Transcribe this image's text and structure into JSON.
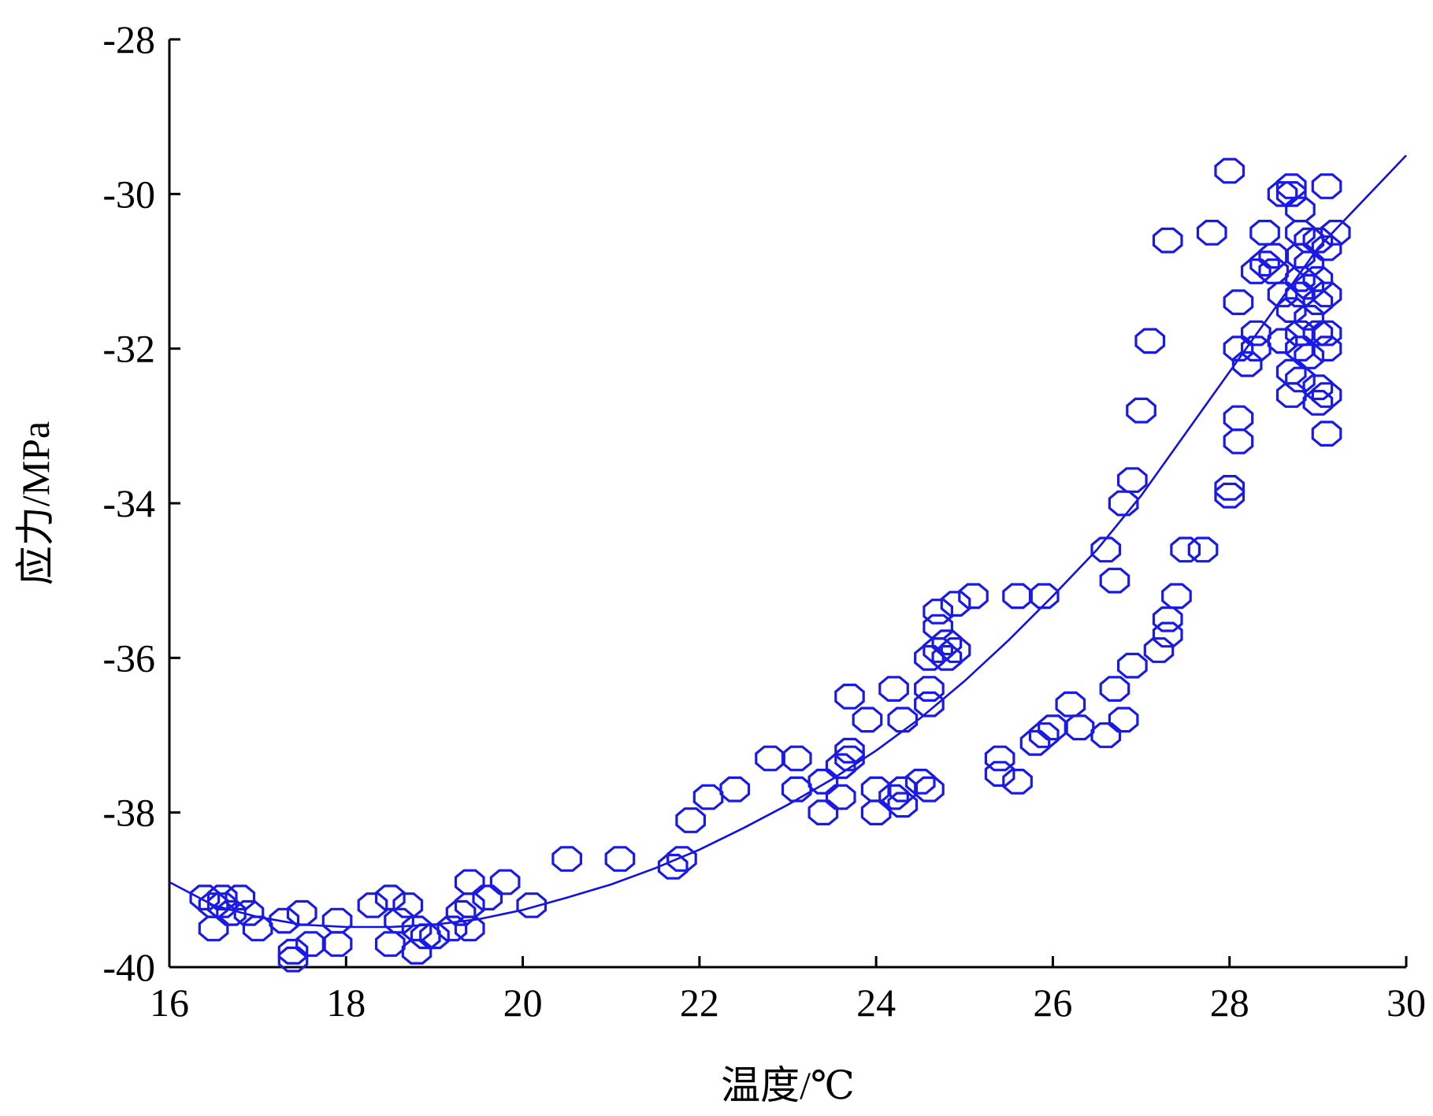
{
  "chart_data": {
    "type": "scatter",
    "title": "",
    "xlabel": "温度/℃",
    "ylabel": "应力/MPa",
    "xlim": [
      16,
      30
    ],
    "ylim": [
      -40,
      -28
    ],
    "xticks": [
      "16",
      "18",
      "20",
      "22",
      "24",
      "26",
      "28",
      "30"
    ],
    "yticks": [
      "-28",
      "-30",
      "-32",
      "-34",
      "-36",
      "-38",
      "-40"
    ],
    "grid": false,
    "marker": "hollow-octagon",
    "color": "#1a1ae6",
    "series": [
      {
        "kind": "points",
        "points": [
          [
            16.4,
            -39.1
          ],
          [
            16.5,
            -39.2
          ],
          [
            16.6,
            -39.1
          ],
          [
            16.7,
            -39.3
          ],
          [
            16.8,
            -39.1
          ],
          [
            16.9,
            -39.3
          ],
          [
            17.0,
            -39.5
          ],
          [
            16.5,
            -39.5
          ],
          [
            16.6,
            -39.2
          ],
          [
            17.3,
            -39.4
          ],
          [
            17.4,
            -39.8
          ],
          [
            17.5,
            -39.3
          ],
          [
            17.6,
            -39.7
          ],
          [
            17.4,
            -39.9
          ],
          [
            17.9,
            -39.4
          ],
          [
            17.9,
            -39.7
          ],
          [
            18.3,
            -39.2
          ],
          [
            18.5,
            -39.1
          ],
          [
            18.7,
            -39.2
          ],
          [
            18.6,
            -39.4
          ],
          [
            18.5,
            -39.7
          ],
          [
            18.8,
            -39.5
          ],
          [
            18.9,
            -39.6
          ],
          [
            18.8,
            -39.8
          ],
          [
            19.0,
            -39.6
          ],
          [
            19.2,
            -39.5
          ],
          [
            19.3,
            -39.3
          ],
          [
            19.4,
            -39.2
          ],
          [
            19.4,
            -39.5
          ],
          [
            19.4,
            -38.9
          ],
          [
            19.6,
            -39.1
          ],
          [
            19.8,
            -38.9
          ],
          [
            20.1,
            -39.2
          ],
          [
            20.5,
            -38.6
          ],
          [
            21.1,
            -38.6
          ],
          [
            21.7,
            -38.7
          ],
          [
            21.8,
            -38.6
          ],
          [
            21.9,
            -38.1
          ],
          [
            22.1,
            -37.8
          ],
          [
            22.4,
            -37.7
          ],
          [
            22.8,
            -37.3
          ],
          [
            23.1,
            -37.3
          ],
          [
            23.1,
            -37.7
          ],
          [
            23.4,
            -38.0
          ],
          [
            23.4,
            -37.6
          ],
          [
            23.6,
            -37.4
          ],
          [
            23.7,
            -37.2
          ],
          [
            23.7,
            -37.3
          ],
          [
            23.6,
            -37.8
          ],
          [
            23.7,
            -36.5
          ],
          [
            23.9,
            -36.8
          ],
          [
            24.0,
            -37.7
          ],
          [
            24.0,
            -38.0
          ],
          [
            24.2,
            -36.4
          ],
          [
            24.2,
            -37.8
          ],
          [
            24.3,
            -37.9
          ],
          [
            24.3,
            -37.7
          ],
          [
            24.3,
            -36.8
          ],
          [
            24.5,
            -37.6
          ],
          [
            24.6,
            -37.7
          ],
          [
            24.6,
            -36.6
          ],
          [
            24.6,
            -36.4
          ],
          [
            24.6,
            -36.0
          ],
          [
            24.7,
            -35.9
          ],
          [
            24.7,
            -35.6
          ],
          [
            24.7,
            -35.4
          ],
          [
            24.8,
            -35.8
          ],
          [
            24.8,
            -36.0
          ],
          [
            24.9,
            -35.9
          ],
          [
            24.9,
            -35.3
          ],
          [
            25.1,
            -35.2
          ],
          [
            25.4,
            -37.3
          ],
          [
            25.4,
            -37.5
          ],
          [
            25.6,
            -37.6
          ],
          [
            25.6,
            -35.2
          ],
          [
            25.8,
            -37.1
          ],
          [
            25.9,
            -37.0
          ],
          [
            25.9,
            -35.2
          ],
          [
            26.0,
            -36.9
          ],
          [
            26.2,
            -36.6
          ],
          [
            26.3,
            -36.9
          ],
          [
            26.6,
            -34.6
          ],
          [
            26.6,
            -37.0
          ],
          [
            26.7,
            -35.0
          ],
          [
            26.7,
            -36.4
          ],
          [
            26.8,
            -36.8
          ],
          [
            26.8,
            -34.0
          ],
          [
            26.9,
            -33.7
          ],
          [
            26.9,
            -36.1
          ],
          [
            27.0,
            -32.8
          ],
          [
            27.1,
            -31.9
          ],
          [
            27.2,
            -35.9
          ],
          [
            27.3,
            -35.5
          ],
          [
            27.3,
            -35.7
          ],
          [
            27.3,
            -30.6
          ],
          [
            27.4,
            -35.2
          ],
          [
            27.5,
            -34.6
          ],
          [
            27.7,
            -34.6
          ],
          [
            27.8,
            -30.5
          ],
          [
            28.0,
            -33.8
          ],
          [
            28.0,
            -29.7
          ],
          [
            28.0,
            -33.9
          ],
          [
            28.1,
            -31.4
          ],
          [
            28.1,
            -32.0
          ],
          [
            28.1,
            -32.9
          ],
          [
            28.1,
            -33.2
          ],
          [
            28.2,
            -32.2
          ],
          [
            28.3,
            -31.8
          ],
          [
            28.3,
            -32.0
          ],
          [
            28.3,
            -31.0
          ],
          [
            28.4,
            -30.5
          ],
          [
            28.4,
            -30.9
          ],
          [
            28.5,
            -31.0
          ],
          [
            28.5,
            -30.8
          ],
          [
            28.6,
            -30.0
          ],
          [
            28.6,
            -31.3
          ],
          [
            28.6,
            -31.9
          ],
          [
            28.7,
            -30.0
          ],
          [
            28.7,
            -29.9
          ],
          [
            28.7,
            -31.5
          ],
          [
            28.7,
            -32.3
          ],
          [
            28.7,
            -32.6
          ],
          [
            28.8,
            -30.2
          ],
          [
            28.8,
            -30.5
          ],
          [
            28.8,
            -30.8
          ],
          [
            28.8,
            -31.1
          ],
          [
            28.8,
            -31.3
          ],
          [
            28.8,
            -31.8
          ],
          [
            28.8,
            -32.0
          ],
          [
            28.8,
            -32.4
          ],
          [
            28.9,
            -30.6
          ],
          [
            28.9,
            -30.9
          ],
          [
            28.9,
            -31.2
          ],
          [
            28.9,
            -31.6
          ],
          [
            28.9,
            -32.1
          ],
          [
            29.0,
            -30.6
          ],
          [
            29.0,
            -31.1
          ],
          [
            29.0,
            -31.4
          ],
          [
            29.0,
            -31.8
          ],
          [
            29.0,
            -32.5
          ],
          [
            29.0,
            -32.7
          ],
          [
            29.1,
            -29.9
          ],
          [
            29.1,
            -30.7
          ],
          [
            29.1,
            -31.3
          ],
          [
            29.1,
            -32.0
          ],
          [
            29.1,
            -32.6
          ],
          [
            29.1,
            -33.1
          ],
          [
            29.2,
            -30.5
          ],
          [
            29.1,
            -31.8
          ]
        ]
      },
      {
        "kind": "fit-curve",
        "points": [
          [
            16.0,
            -38.9
          ],
          [
            16.5,
            -39.2
          ],
          [
            17.0,
            -39.35
          ],
          [
            17.5,
            -39.45
          ],
          [
            18.0,
            -39.48
          ],
          [
            18.5,
            -39.48
          ],
          [
            19.0,
            -39.45
          ],
          [
            19.5,
            -39.38
          ],
          [
            20.0,
            -39.26
          ],
          [
            20.5,
            -39.1
          ],
          [
            21.0,
            -38.93
          ],
          [
            21.5,
            -38.72
          ],
          [
            22.0,
            -38.48
          ],
          [
            22.5,
            -38.2
          ],
          [
            23.0,
            -37.9
          ],
          [
            23.5,
            -37.57
          ],
          [
            24.0,
            -37.2
          ],
          [
            24.5,
            -36.78
          ],
          [
            25.0,
            -36.3
          ],
          [
            25.5,
            -35.77
          ],
          [
            26.0,
            -35.2
          ],
          [
            26.5,
            -34.6
          ],
          [
            27.0,
            -33.9
          ],
          [
            27.5,
            -33.1
          ],
          [
            28.0,
            -32.3
          ],
          [
            28.5,
            -31.5
          ],
          [
            29.0,
            -30.7
          ],
          [
            29.5,
            -30.1
          ],
          [
            30.0,
            -29.5
          ]
        ]
      }
    ]
  }
}
